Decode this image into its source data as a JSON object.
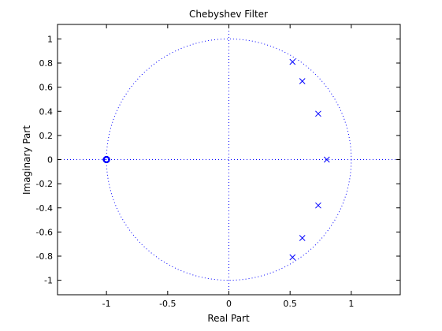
{
  "chart_data": {
    "type": "scatter",
    "title": "Chebyshev Filter",
    "xlabel": "Real Part",
    "ylabel": "Imaginary Part",
    "xlim": [
      -1.4,
      1.4
    ],
    "ylim": [
      -1.12,
      1.12
    ],
    "xticks": [
      -1,
      -0.5,
      0,
      0.5,
      1
    ],
    "xtick_labels": [
      "-1",
      "-0.5",
      "0",
      "0.5",
      "1"
    ],
    "yticks": [
      -1,
      -0.8,
      -0.6,
      -0.4,
      -0.2,
      0,
      0.2,
      0.4,
      0.6,
      0.8,
      1
    ],
    "ytick_labels": [
      "-1",
      "-0.8",
      "-0.6",
      "-0.4",
      "-0.2",
      "0",
      "0.2",
      "0.4",
      "0.6",
      "0.8",
      "1"
    ],
    "grid": false,
    "unit_circle": true,
    "colors": {
      "marker": "#0000ff",
      "axes": "#000000"
    },
    "series": [
      {
        "marker": "x",
        "points": [
          {
            "x": 0.52,
            "y": 0.81
          },
          {
            "x": 0.6,
            "y": 0.65
          },
          {
            "x": 0.73,
            "y": 0.38
          },
          {
            "x": 0.8,
            "y": 0.0
          },
          {
            "x": 0.73,
            "y": -0.38
          },
          {
            "x": 0.6,
            "y": -0.65
          },
          {
            "x": 0.52,
            "y": -0.81
          }
        ]
      },
      {
        "marker": "o",
        "points": [
          {
            "x": -1.0,
            "y": 0.0
          },
          {
            "x": -1.0,
            "y": 0.0
          },
          {
            "x": -1.0,
            "y": 0.0
          },
          {
            "x": -1.0,
            "y": 0.0
          },
          {
            "x": -1.0,
            "y": 0.0
          },
          {
            "x": -1.0,
            "y": 0.0
          },
          {
            "x": -1.0,
            "y": 0.0
          }
        ]
      }
    ]
  }
}
